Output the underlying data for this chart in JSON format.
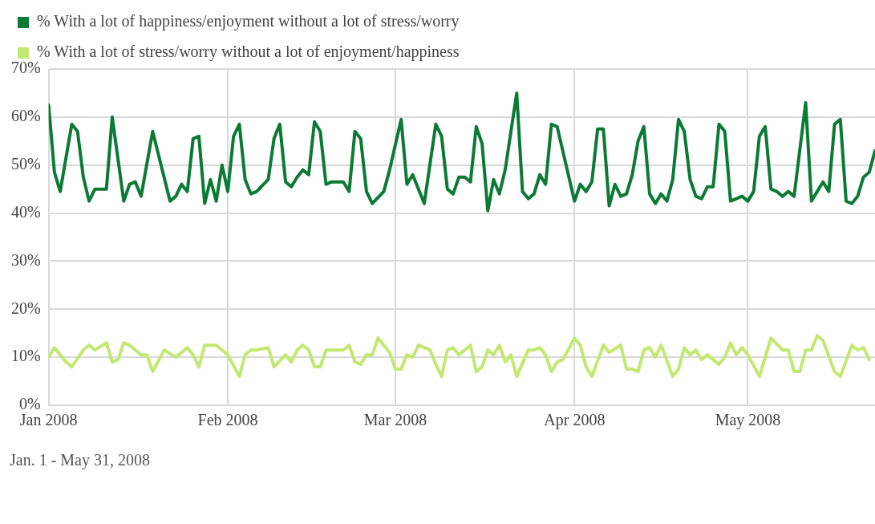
{
  "chart_data": {
    "type": "line",
    "legend": "top left",
    "grid": true,
    "xlim": [
      "2008-01-01",
      "2008-05-23"
    ],
    "xticks": [
      {
        "value": "2008-01-01",
        "label": "Jan 2008"
      },
      {
        "value": "2008-02-01",
        "label": "Feb 2008"
      },
      {
        "value": "2008-03-01",
        "label": "Mar 2008"
      },
      {
        "value": "2008-04-01",
        "label": "Apr 2008"
      },
      {
        "value": "2008-05-01",
        "label": "May 2008"
      }
    ],
    "ylim": [
      0,
      70
    ],
    "yticks": [
      {
        "value": 0,
        "label": "0%"
      },
      {
        "value": 10,
        "label": "10%"
      },
      {
        "value": 20,
        "label": "20%"
      },
      {
        "value": 30,
        "label": "30%"
      },
      {
        "value": 40,
        "label": "40%"
      },
      {
        "value": 50,
        "label": "50%"
      },
      {
        "value": 60,
        "label": "60%"
      },
      {
        "value": 70,
        "label": "70%"
      }
    ],
    "annotations": [
      "Jan. 1 - May 31, 2008"
    ],
    "series": [
      {
        "name": "% With a lot of happiness/enjoyment without a lot of stress/worry",
        "color": "#0b7a35",
        "x": [
          "2008-01-01",
          "2008-01-02",
          "2008-01-03",
          "2008-01-05",
          "2008-01-06",
          "2008-01-07",
          "2008-01-08",
          "2008-01-09",
          "2008-01-11",
          "2008-01-12",
          "2008-01-14",
          "2008-01-15",
          "2008-01-16",
          "2008-01-17",
          "2008-01-19",
          "2008-01-22",
          "2008-01-23",
          "2008-01-24",
          "2008-01-25",
          "2008-01-26",
          "2008-01-27",
          "2008-01-28",
          "2008-01-29",
          "2008-01-30",
          "2008-01-31",
          "2008-02-01",
          "2008-02-02",
          "2008-02-03",
          "2008-02-04",
          "2008-02-05",
          "2008-02-06",
          "2008-02-08",
          "2008-02-09",
          "2008-02-10",
          "2008-02-11",
          "2008-02-12",
          "2008-02-13",
          "2008-02-14",
          "2008-02-15",
          "2008-02-16",
          "2008-02-17",
          "2008-02-18",
          "2008-02-19",
          "2008-02-21",
          "2008-02-22",
          "2008-02-23",
          "2008-02-24",
          "2008-02-25",
          "2008-02-26",
          "2008-02-28",
          "2008-02-29",
          "2008-03-02",
          "2008-03-03",
          "2008-03-04",
          "2008-03-06",
          "2008-03-08",
          "2008-03-09",
          "2008-03-10",
          "2008-03-11",
          "2008-03-12",
          "2008-03-13",
          "2008-03-14",
          "2008-03-15",
          "2008-03-16",
          "2008-03-17",
          "2008-03-18",
          "2008-03-19",
          "2008-03-20",
          "2008-03-22",
          "2008-03-23",
          "2008-03-24",
          "2008-03-25",
          "2008-03-26",
          "2008-03-27",
          "2008-03-28",
          "2008-03-29",
          "2008-04-01",
          "2008-04-02",
          "2008-04-03",
          "2008-04-04",
          "2008-04-05",
          "2008-04-06",
          "2008-04-07",
          "2008-04-08",
          "2008-04-09",
          "2008-04-10",
          "2008-04-11",
          "2008-04-12",
          "2008-04-13",
          "2008-04-14",
          "2008-04-15",
          "2008-04-16",
          "2008-04-17",
          "2008-04-18",
          "2008-04-19",
          "2008-04-20",
          "2008-04-21",
          "2008-04-22",
          "2008-04-23",
          "2008-04-24",
          "2008-04-25",
          "2008-04-26",
          "2008-04-27",
          "2008-04-28",
          "2008-04-29",
          "2008-04-30",
          "2008-05-01",
          "2008-05-02",
          "2008-05-03",
          "2008-05-04",
          "2008-05-05",
          "2008-05-06",
          "2008-05-07",
          "2008-05-08",
          "2008-05-09",
          "2008-05-11",
          "2008-05-12",
          "2008-05-13",
          "2008-05-14",
          "2008-05-15",
          "2008-05-16",
          "2008-05-17",
          "2008-05-18",
          "2008-05-19",
          "2008-05-20",
          "2008-05-21",
          "2008-05-22",
          "2008-05-23"
        ],
        "values": [
          62.5,
          48.5,
          44.5,
          58.5,
          57,
          47.5,
          42.5,
          45,
          45,
          60,
          42.5,
          46,
          46.5,
          43.5,
          57,
          42.5,
          43.5,
          46,
          44.5,
          55.5,
          56,
          42,
          47,
          42.5,
          50,
          44.5,
          56,
          58.5,
          47,
          44,
          44.5,
          47,
          55.5,
          58.5,
          46.5,
          45.5,
          47.5,
          49,
          48,
          59,
          57,
          46,
          46.5,
          46.5,
          44.5,
          57,
          55.5,
          44.5,
          42,
          44.5,
          49,
          59.5,
          46,
          48,
          42,
          58.5,
          56,
          45,
          44,
          47.5,
          47.5,
          46.5,
          58,
          54.5,
          40.5,
          47,
          44,
          49,
          65,
          44.5,
          43,
          44,
          48,
          46,
          58.5,
          58,
          42.5,
          46,
          44.5,
          46.5,
          57.5,
          57.5,
          41.5,
          46,
          43.5,
          44,
          48,
          55,
          58,
          44,
          42,
          44,
          42.5,
          47,
          59.5,
          57,
          47,
          43.5,
          43,
          45.5,
          45.5,
          58.5,
          57,
          42.5,
          43,
          43.5,
          42.5,
          44.5,
          56,
          58,
          45,
          44.5,
          43.5,
          44.5,
          43.5,
          63,
          42.5,
          44.5,
          46.5,
          44.5,
          58.5,
          59.5,
          42.5,
          42,
          43.5,
          47.5,
          48.5,
          53
        ]
      },
      {
        "name": "% With a lot of stress/worry without a lot of enjoyment/happiness",
        "color": "#c2e872",
        "x": [
          "2008-01-01",
          "2008-01-02",
          "2008-01-03",
          "2008-01-04",
          "2008-01-05",
          "2008-01-07",
          "2008-01-08",
          "2008-01-09",
          "2008-01-11",
          "2008-01-12",
          "2008-01-13",
          "2008-01-14",
          "2008-01-15",
          "2008-01-17",
          "2008-01-18",
          "2008-01-19",
          "2008-01-21",
          "2008-01-23",
          "2008-01-25",
          "2008-01-26",
          "2008-01-27",
          "2008-01-28",
          "2008-01-30",
          "2008-02-01",
          "2008-02-03",
          "2008-02-04",
          "2008-02-05",
          "2008-02-06",
          "2008-02-08",
          "2008-02-09",
          "2008-02-11",
          "2008-02-12",
          "2008-02-13",
          "2008-02-14",
          "2008-02-15",
          "2008-02-16",
          "2008-02-17",
          "2008-02-18",
          "2008-02-21",
          "2008-02-22",
          "2008-02-23",
          "2008-02-24",
          "2008-02-25",
          "2008-02-26",
          "2008-02-27",
          "2008-02-29",
          "2008-03-01",
          "2008-03-02",
          "2008-03-03",
          "2008-03-04",
          "2008-03-05",
          "2008-03-07",
          "2008-03-08",
          "2008-03-09",
          "2008-03-10",
          "2008-03-11",
          "2008-03-12",
          "2008-03-14",
          "2008-03-15",
          "2008-03-16",
          "2008-03-17",
          "2008-03-18",
          "2008-03-19",
          "2008-03-20",
          "2008-03-21",
          "2008-03-22",
          "2008-03-24",
          "2008-03-25",
          "2008-03-26",
          "2008-03-27",
          "2008-03-28",
          "2008-03-29",
          "2008-03-30",
          "2008-04-01",
          "2008-04-02",
          "2008-04-03",
          "2008-04-04",
          "2008-04-06",
          "2008-04-07",
          "2008-04-09",
          "2008-04-10",
          "2008-04-11",
          "2008-04-12",
          "2008-04-13",
          "2008-04-14",
          "2008-04-15",
          "2008-04-16",
          "2008-04-18",
          "2008-04-19",
          "2008-04-20",
          "2008-04-21",
          "2008-04-22",
          "2008-04-23",
          "2008-04-24",
          "2008-04-26",
          "2008-04-27",
          "2008-04-28",
          "2008-04-29",
          "2008-04-30",
          "2008-05-01",
          "2008-05-03",
          "2008-05-05",
          "2008-05-07",
          "2008-05-08",
          "2008-05-09",
          "2008-05-10",
          "2008-05-11",
          "2008-05-12",
          "2008-05-13",
          "2008-05-14",
          "2008-05-16",
          "2008-05-17",
          "2008-05-19",
          "2008-05-20",
          "2008-05-21",
          "2008-05-22"
        ],
        "values": [
          10,
          12,
          10.5,
          9,
          8,
          11.5,
          12.5,
          11.5,
          13,
          9,
          9.5,
          13,
          12.5,
          10.5,
          10.5,
          7,
          11.5,
          10,
          12,
          10.5,
          8,
          12.5,
          12.5,
          10.5,
          6,
          10.5,
          11.5,
          11.5,
          12,
          8,
          10.5,
          9,
          11.5,
          12.5,
          11.5,
          8,
          8,
          11.5,
          11.5,
          12.5,
          9,
          8.5,
          10.5,
          10.5,
          14,
          11,
          7.5,
          7.5,
          10.5,
          10,
          12.5,
          11.5,
          8.5,
          6,
          11.5,
          12,
          10.5,
          12.5,
          7,
          8,
          11.5,
          10.5,
          12.5,
          9,
          10.5,
          6,
          11.5,
          11.5,
          12,
          10.5,
          7,
          9,
          9.5,
          14,
          12.5,
          8,
          6,
          12.5,
          11,
          12.5,
          7.5,
          7.5,
          7,
          11.5,
          12,
          10,
          12.5,
          6,
          7.5,
          12,
          10.5,
          11.5,
          9.5,
          10.5,
          8.5,
          10,
          13,
          10.5,
          12,
          10.5,
          6,
          14,
          11.5,
          11.5,
          7,
          7,
          11.5,
          11.5,
          14.5,
          13.5,
          7,
          6,
          12.5,
          11.5,
          12,
          9.5
        ]
      }
    ]
  }
}
